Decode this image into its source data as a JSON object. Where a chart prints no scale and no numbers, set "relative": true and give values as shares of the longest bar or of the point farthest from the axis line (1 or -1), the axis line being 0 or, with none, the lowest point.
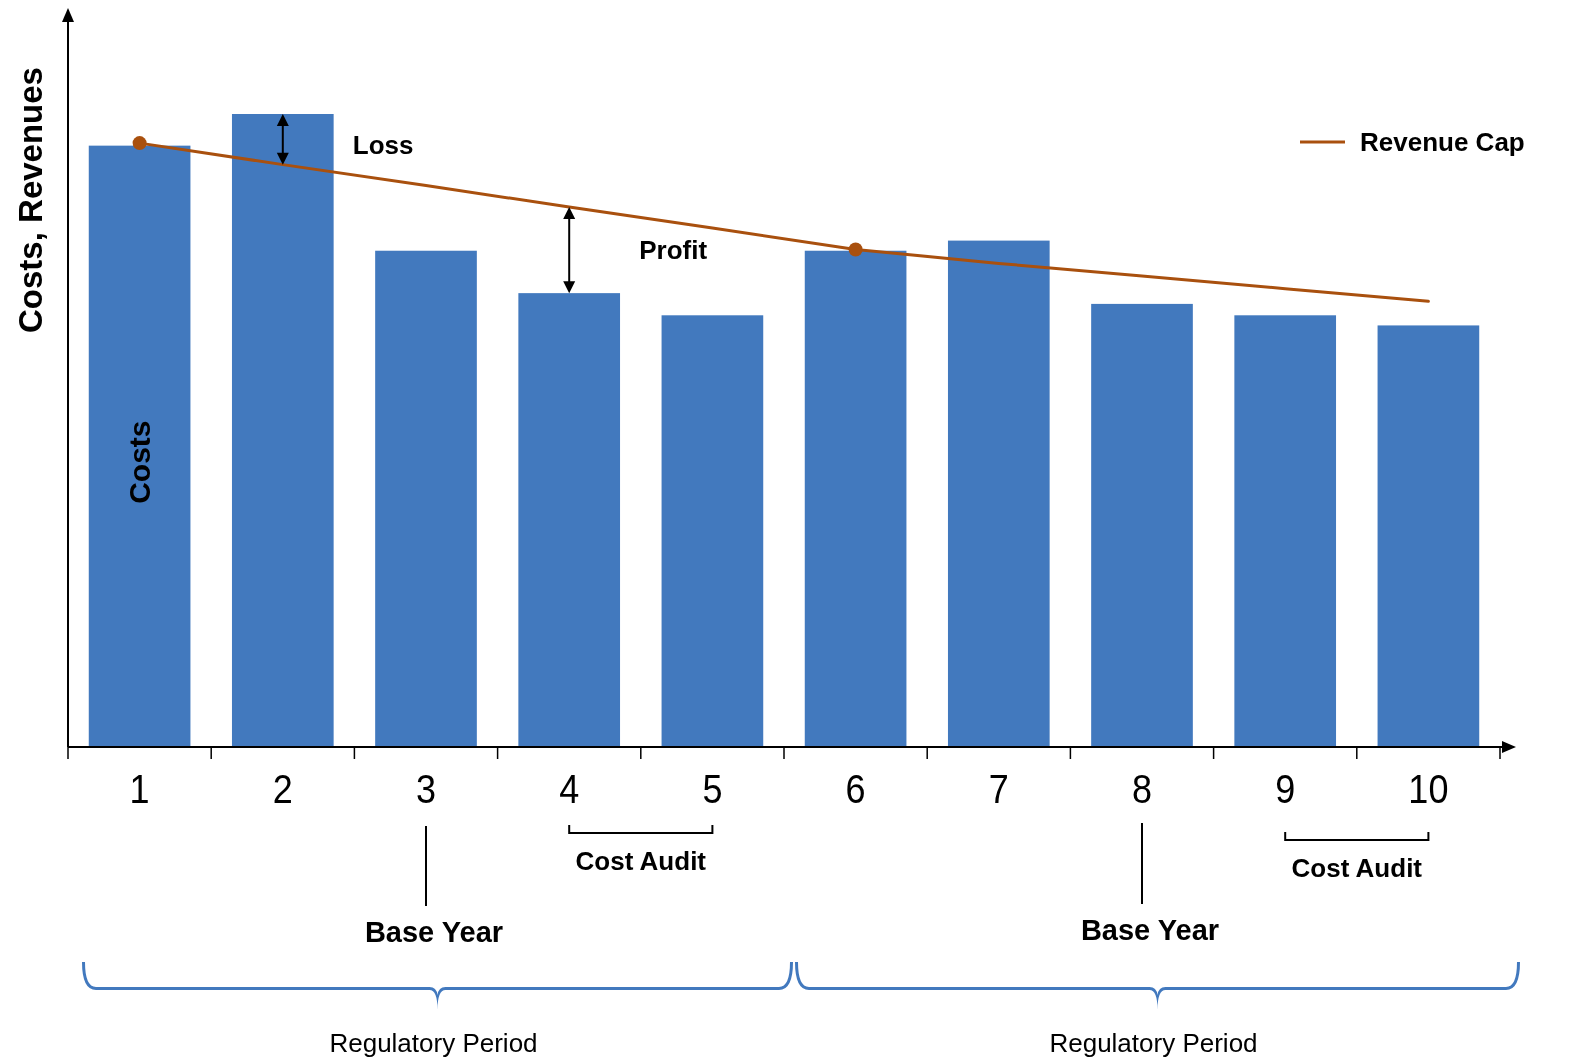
{
  "chart_data": {
    "type": "bar",
    "relative": true,
    "ylabel": "Costs, Revenues",
    "categories": [
      "1",
      "2",
      "3",
      "4",
      "5",
      "6",
      "7",
      "8",
      "9",
      "10"
    ],
    "series": [
      {
        "color": "#4279be",
        "values": [
          0.95,
          1,
          0.784,
          0.717,
          0.682,
          0.784,
          0.8,
          0.7,
          0.682,
          0.666
        ]
      },
      {
        "type": "line",
        "name": "Revenue Cap",
        "color": "#a9500e",
        "values": [
          0.954,
          0.92,
          0.887,
          0.853,
          0.82,
          0.786,
          0.764,
          0.744,
          0.724,
          0.704
        ]
      },
      {
        "type": "scatter",
        "color": "#a9500e",
        "values": [
          0.954,
          null,
          null,
          null,
          null,
          0.786,
          null,
          null,
          null,
          null
        ]
      }
    ],
    "legend": "top right",
    "annotations": [
      "Loss",
      "Profit",
      "Costs",
      "Cost Audit",
      "Cost Audit",
      "Base Year",
      "Base Year",
      "Regulatory Period",
      "Regulatory Period"
    ]
  }
}
